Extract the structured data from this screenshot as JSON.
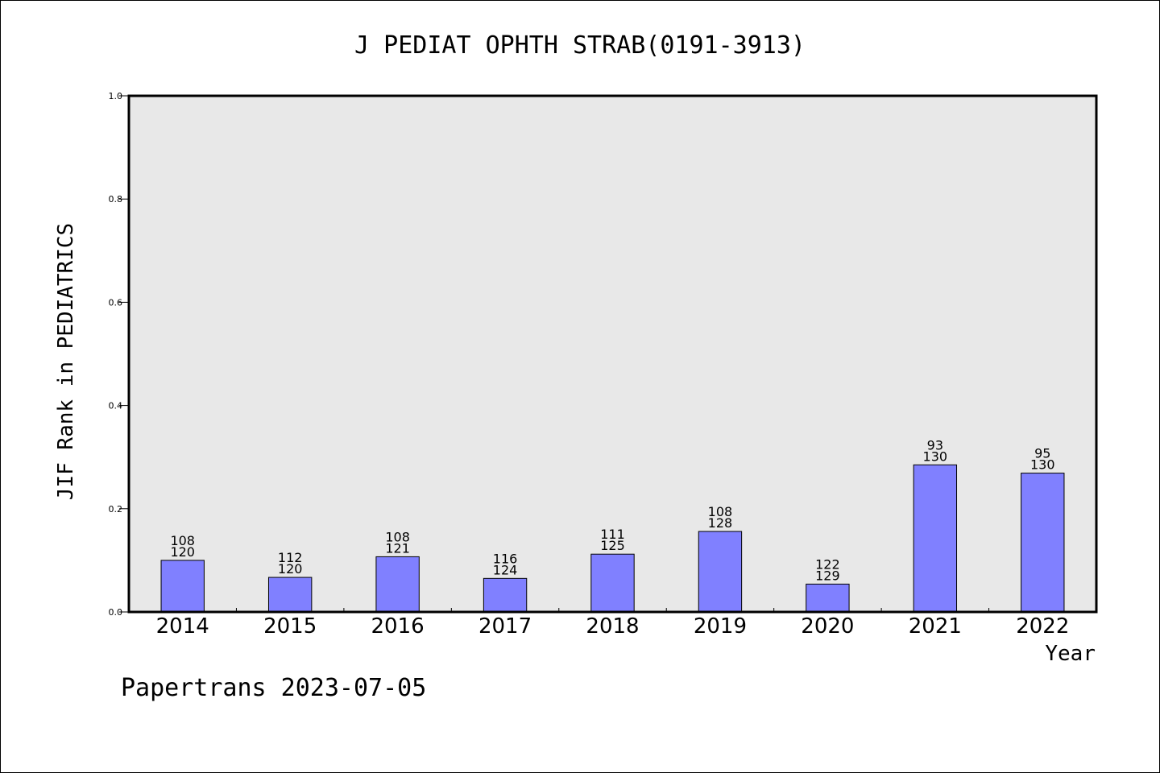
{
  "chart_data": {
    "type": "bar",
    "title": "J PEDIAT OPHTH STRAB(0191-3913)",
    "xlabel": "Year",
    "ylabel": "JIF Rank in PEDIATRICS",
    "ylim": [
      0,
      1.0
    ],
    "yticks": [
      "0.0",
      "0.2",
      "0.4",
      "0.6",
      "0.8",
      "1.0"
    ],
    "grid": false,
    "categories": [
      "2014",
      "2015",
      "2016",
      "2017",
      "2018",
      "2019",
      "2020",
      "2021",
      "2022"
    ],
    "values": [
      0.1,
      0.067,
      0.107,
      0.065,
      0.112,
      0.156,
      0.054,
      0.285,
      0.269
    ],
    "labels": [
      [
        "108",
        "120"
      ],
      [
        "112",
        "120"
      ],
      [
        "108",
        "121"
      ],
      [
        "116",
        "124"
      ],
      [
        "111",
        "125"
      ],
      [
        "108",
        "128"
      ],
      [
        "122",
        "129"
      ],
      [
        "93",
        "130"
      ],
      [
        "95",
        "130"
      ]
    ],
    "colors": {
      "bar": "#8080ff",
      "plot_bg": "#e8e8e8",
      "axis": "#000000"
    }
  },
  "footer": {
    "text": "Papertrans 2023-07-05"
  }
}
